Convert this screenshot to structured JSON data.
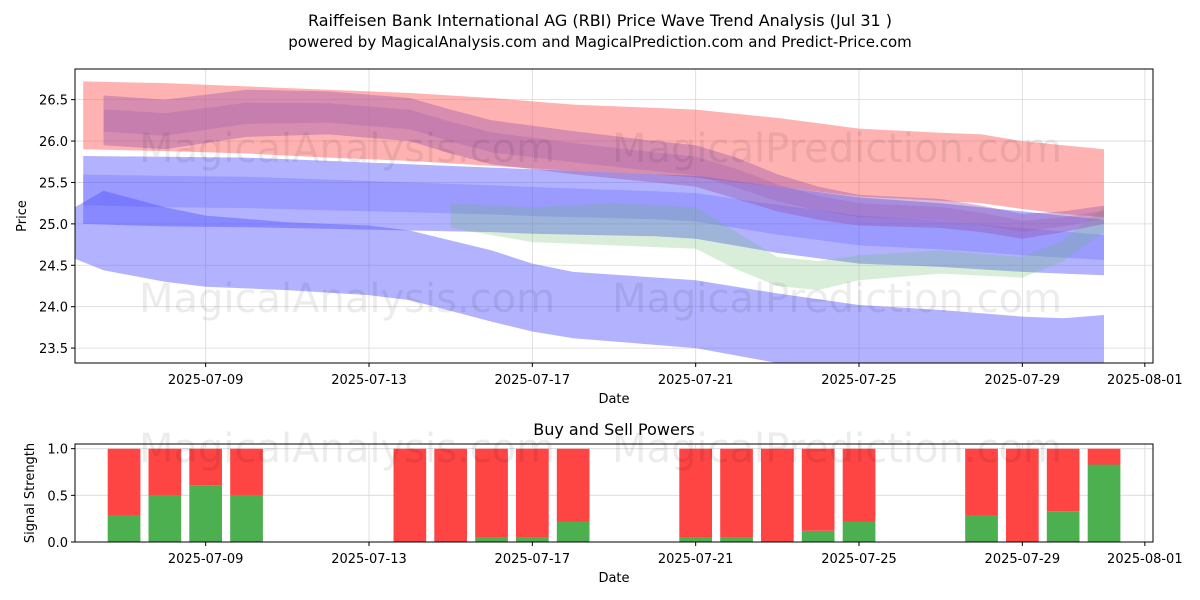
{
  "header": {
    "title": "Raiffeisen Bank International AG (RBI) Price Wave Trend Analysis (Jul 31 )",
    "subtitle": "powered by MagicalAnalysis.com and MagicalPrediction.com and Predict-Price.com"
  },
  "watermarks": [
    "MagicalAnalysis.com",
    "MagicalPrediction.com"
  ],
  "colors": {
    "red_band": "#ff6666",
    "blue_band": "#5555ff",
    "green_band": "#66bb66",
    "purple_band": "#9955aa",
    "buy": "#4caf50",
    "sell": "#ff4444",
    "grid": "#d9d9d9"
  },
  "chart_data": [
    {
      "type": "area",
      "title": "",
      "xlabel": "Date",
      "ylabel": "Price",
      "xlim": [
        "2025-07-05.8",
        "2025-08-01.2"
      ],
      "ylim": [
        23.32,
        26.87
      ],
      "x_ticks": [
        "2025-07-09",
        "2025-07-13",
        "2025-07-17",
        "2025-07-21",
        "2025-07-25",
        "2025-07-29",
        "2025-08-01"
      ],
      "y_ticks": [
        23.5,
        24.0,
        24.5,
        25.0,
        25.5,
        26.0,
        26.5
      ],
      "grid": true,
      "series": [
        {
          "band": "red",
          "x": [
            "2025-07-06",
            "2025-07-08",
            "2025-07-10",
            "2025-07-12",
            "2025-07-14",
            "2025-07-16",
            "2025-07-18",
            "2025-07-20",
            "2025-07-21",
            "2025-07-23",
            "2025-07-25",
            "2025-07-27",
            "2025-07-28",
            "2025-07-29",
            "2025-07-30",
            "2025-07-31"
          ],
          "upper": [
            26.72,
            26.7,
            26.66,
            26.62,
            26.58,
            26.52,
            26.44,
            26.4,
            26.38,
            26.28,
            26.15,
            26.1,
            26.08,
            26.0,
            25.95,
            25.9
          ],
          "lower": [
            25.9,
            25.88,
            25.85,
            25.8,
            25.76,
            25.7,
            25.64,
            25.6,
            25.56,
            25.45,
            25.33,
            25.28,
            25.25,
            25.18,
            25.12,
            25.08
          ]
        },
        {
          "band": "blue-wide",
          "x": [
            "2025-07-06",
            "2025-07-08",
            "2025-07-10",
            "2025-07-12",
            "2025-07-14",
            "2025-07-16",
            "2025-07-17",
            "2025-07-18",
            "2025-07-20",
            "2025-07-21",
            "2025-07-23",
            "2025-07-25",
            "2025-07-27",
            "2025-07-29",
            "2025-07-30",
            "2025-07-31"
          ],
          "upper": [
            25.82,
            25.81,
            25.8,
            25.76,
            25.72,
            25.68,
            25.66,
            25.64,
            25.6,
            25.58,
            25.45,
            25.32,
            25.25,
            25.15,
            25.1,
            25.05
          ],
          "lower": [
            25.0,
            24.97,
            24.96,
            24.94,
            24.92,
            24.9,
            24.88,
            24.87,
            24.85,
            24.82,
            24.65,
            24.52,
            24.48,
            24.42,
            24.4,
            24.38
          ]
        },
        {
          "band": "blue-low",
          "x": [
            "2025-07-05.8",
            "2025-07-06.5",
            "2025-07-08",
            "2025-07-09",
            "2025-07-11",
            "2025-07-13",
            "2025-07-14",
            "2025-07-16",
            "2025-07-17",
            "2025-07-18",
            "2025-07-21",
            "2025-07-23",
            "2025-07-25",
            "2025-07-27",
            "2025-07-29",
            "2025-07-30",
            "2025-07-31"
          ],
          "upper": [
            25.2,
            25.4,
            25.2,
            25.1,
            25.02,
            24.98,
            24.92,
            24.68,
            24.52,
            24.42,
            24.32,
            24.16,
            24.02,
            23.96,
            23.88,
            23.86,
            23.9
          ],
          "lower": [
            24.58,
            24.44,
            24.3,
            24.24,
            24.2,
            24.14,
            24.08,
            23.82,
            23.7,
            23.62,
            23.5,
            23.32,
            23.32,
            23.32,
            23.32,
            23.32,
            23.32
          ]
        },
        {
          "band": "purple",
          "x": [
            "2025-07-06.5",
            "2025-07-08",
            "2025-07-10",
            "2025-07-12",
            "2025-07-14",
            "2025-07-15",
            "2025-07-16",
            "2025-07-18",
            "2025-07-20",
            "2025-07-21",
            "2025-07-22",
            "2025-07-23",
            "2025-07-24",
            "2025-07-25",
            "2025-07-27",
            "2025-07-28",
            "2025-07-29",
            "2025-07-30",
            "2025-07-31"
          ],
          "upper": [
            26.55,
            26.5,
            26.62,
            26.6,
            26.52,
            26.38,
            26.25,
            26.12,
            26.0,
            25.95,
            25.8,
            25.6,
            25.45,
            25.35,
            25.3,
            25.22,
            25.12,
            25.15,
            25.22
          ],
          "lower": [
            25.95,
            25.9,
            26.05,
            26.08,
            26.0,
            25.85,
            25.72,
            25.6,
            25.5,
            25.45,
            25.3,
            25.15,
            25.05,
            24.98,
            24.95,
            24.9,
            24.82,
            24.9,
            25.0
          ]
        },
        {
          "band": "green",
          "x": [
            "2025-07-15",
            "2025-07-17",
            "2025-07-19",
            "2025-07-21",
            "2025-07-22",
            "2025-07-23",
            "2025-07-24",
            "2025-07-25",
            "2025-07-27",
            "2025-07-29",
            "2025-07-30",
            "2025-07-31"
          ],
          "upper": [
            25.25,
            25.2,
            25.25,
            25.2,
            24.9,
            24.6,
            24.55,
            24.62,
            24.68,
            24.6,
            24.8,
            25.2
          ],
          "lower": [
            24.95,
            24.78,
            24.74,
            24.7,
            24.45,
            24.25,
            24.2,
            24.32,
            24.4,
            24.35,
            24.55,
            24.9
          ]
        }
      ]
    },
    {
      "type": "bar",
      "title": "Buy and Sell Powers",
      "xlabel": "Date",
      "ylabel": "Signal Strength",
      "ylim": [
        0,
        1.05
      ],
      "y_ticks": [
        0.0,
        0.5,
        1.0
      ],
      "x_ticks": [
        "2025-07-09",
        "2025-07-13",
        "2025-07-17",
        "2025-07-21",
        "2025-07-25",
        "2025-07-29",
        "2025-08-01"
      ],
      "categories": [
        "2025-07-07",
        "2025-07-08",
        "2025-07-09",
        "2025-07-10",
        "2025-07-14",
        "2025-07-15",
        "2025-07-16",
        "2025-07-17",
        "2025-07-18",
        "2025-07-21",
        "2025-07-22",
        "2025-07-23",
        "2025-07-24",
        "2025-07-25",
        "2025-07-28",
        "2025-07-29",
        "2025-07-30",
        "2025-07-31"
      ],
      "series": [
        {
          "name": "Buy",
          "values": [
            0.28,
            0.5,
            0.61,
            0.5,
            0.0,
            0.0,
            0.05,
            0.05,
            0.22,
            0.05,
            0.05,
            0.0,
            0.12,
            0.22,
            0.28,
            0.0,
            0.33,
            0.83
          ]
        },
        {
          "name": "Sell",
          "values": [
            0.72,
            0.5,
            0.39,
            0.5,
            1.0,
            1.0,
            0.95,
            0.95,
            0.78,
            0.95,
            0.95,
            1.0,
            0.88,
            0.78,
            0.72,
            1.0,
            0.67,
            0.17
          ]
        }
      ]
    }
  ]
}
